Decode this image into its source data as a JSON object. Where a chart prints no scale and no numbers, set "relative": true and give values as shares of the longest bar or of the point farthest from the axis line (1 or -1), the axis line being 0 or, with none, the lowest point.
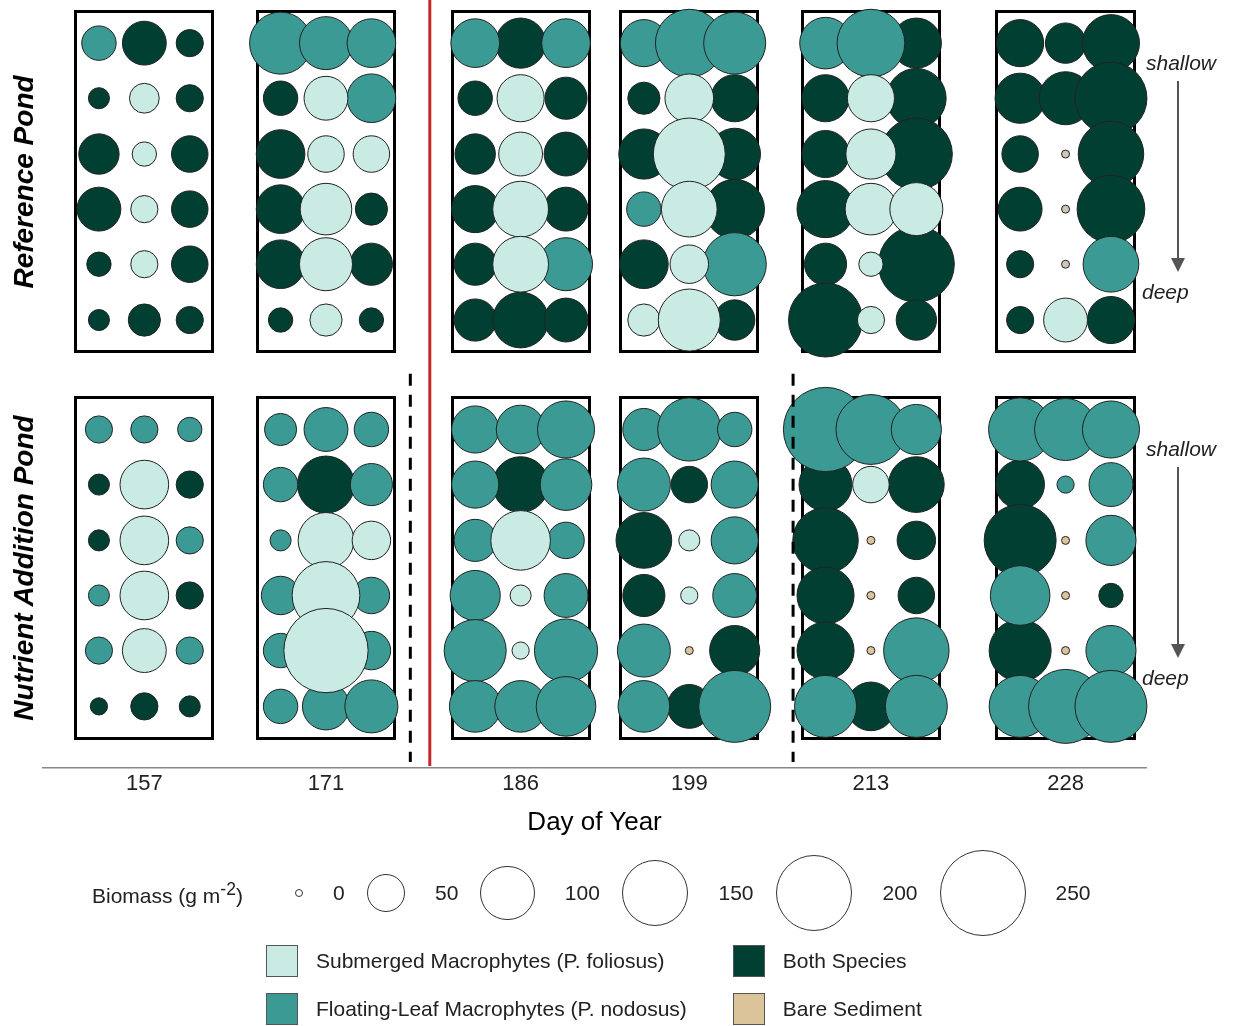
{
  "chart_data": {
    "type": "bubble",
    "xlabel": "Day of Year",
    "relative": true,
    "xlim": [
      149.2,
      234.2
    ],
    "xticks": [
      157,
      171,
      186,
      199,
      213,
      228
    ],
    "tick_labels": "x",
    "grid": false,
    "legend": "bottom",
    "legend_title": "Biomass (g m$^{-2}$)",
    "size_legend": [
      50,
      100,
      150,
      200,
      250
    ],
    "annotations": [
      "Reference Pond",
      "shallow",
      "deep",
      "Nutrient Addition Pond",
      "shallow",
      "deep",
      "0"
    ],
    "ref_lines": [
      {
        "axis": "x",
        "value": 179,
        "color": "#c62828",
        "line_style": "solid"
      },
      {
        "axis": "x",
        "value": 177.5,
        "color": "#000000",
        "line_style": "dashed"
      },
      {
        "axis": "x",
        "value": 207,
        "color": "#000000",
        "line_style": "dashed"
      }
    ],
    "series": [
      {
        "color": "#c9ebe4",
        "x": [
          157,
          157,
          157,
          157,
          171,
          171,
          174.5,
          171,
          171,
          171,
          186,
          186,
          186,
          186,
          199,
          199,
          199,
          199,
          195.5,
          199,
          213,
          213,
          213,
          216.5,
          213,
          213,
          228
        ],
        "values": [
          0.924,
          0.847,
          0.771,
          0.695,
          0.924,
          0.847,
          0.847,
          0.771,
          0.695,
          0.618,
          0.924,
          0.847,
          0.771,
          0.695,
          0.924,
          0.847,
          0.771,
          0.695,
          0.618,
          0.618,
          0.924,
          0.847,
          0.771,
          0.771,
          0.695,
          0.618,
          0.618
        ],
        "sizes": [
          30,
          20,
          25,
          25,
          65,
          45,
          45,
          90,
          95,
          35,
          75,
          65,
          105,
          105,
          80,
          175,
          105,
          50,
          35,
          130,
          75,
          85,
          90,
          95,
          20,
          25,
          65
        ]
      },
      {
        "color": "#3b9a93",
        "x": [
          153.5,
          167.5,
          171,
          174.5,
          174.5,
          182.5,
          189.5,
          189.5,
          195.5,
          199,
          202.5,
          195.5,
          202.5,
          209.5,
          213,
          231.5
        ],
        "values": [
          1,
          1,
          1,
          1,
          0.924,
          1,
          1,
          0.695,
          1,
          1,
          1,
          0.771,
          0.695,
          1,
          1,
          0.695
        ],
        "sizes": [
          40,
          130,
          95,
          80,
          80,
          80,
          80,
          95,
          75,
          155,
          130,
          40,
          135,
          90,
          155,
          105
        ]
      },
      {
        "color": "#023f33",
        "x": [
          157,
          160.5,
          153.5,
          160.5,
          153.5,
          160.5,
          153.5,
          160.5,
          153.5,
          160.5,
          153.5,
          157,
          160.5,
          167.5,
          167.5,
          167.5,
          174.5,
          167.5,
          174.5,
          167.5,
          174.5,
          186,
          182.5,
          189.5,
          182.5,
          189.5,
          182.5,
          189.5,
          182.5,
          182.5,
          186,
          189.5,
          195.5,
          202.5,
          195.5,
          202.5,
          202.5,
          195.5,
          202.5,
          216.5,
          209.5,
          216.5,
          209.5,
          216.5,
          209.5,
          209.5,
          216.5,
          209.5,
          216.5,
          224.5,
          228,
          231.5,
          224.5,
          228,
          231.5,
          224.5,
          231.5,
          224.5,
          231.5,
          224.5,
          224.5,
          231.5
        ],
        "values": [
          1,
          1,
          0.924,
          0.924,
          0.847,
          0.847,
          0.771,
          0.771,
          0.695,
          0.695,
          0.618,
          0.618,
          0.618,
          0.924,
          0.847,
          0.771,
          0.771,
          0.695,
          0.695,
          0.618,
          0.618,
          1,
          0.924,
          0.924,
          0.847,
          0.847,
          0.771,
          0.771,
          0.695,
          0.618,
          0.618,
          0.618,
          0.924,
          0.924,
          0.847,
          0.847,
          0.771,
          0.695,
          0.618,
          1,
          0.924,
          0.924,
          0.847,
          0.847,
          0.771,
          0.695,
          0.695,
          0.618,
          0.618,
          1,
          1,
          1,
          0.924,
          0.924,
          0.924,
          0.847,
          0.847,
          0.771,
          0.771,
          0.695,
          0.618,
          0.618
        ],
        "sizes": [
          65,
          25,
          15,
          25,
          55,
          45,
          65,
          45,
          20,
          45,
          15,
          35,
          25,
          40,
          80,
          80,
          35,
          80,
          60,
          20,
          20,
          85,
          40,
          60,
          55,
          65,
          75,
          65,
          60,
          60,
          105,
          65,
          35,
          75,
          85,
          90,
          120,
          80,
          55,
          85,
          75,
          120,
          75,
          175,
          110,
          60,
          195,
          185,
          55,
          75,
          55,
          110,
          85,
          95,
          175,
          45,
          145,
          65,
          155,
          25,
          25,
          75
        ]
      },
      {
        "type": "scatter",
        "color": "#cfc6b8",
        "x": [
          228,
          228,
          228
        ],
        "values": [
          0.847,
          0.771,
          0.695
        ]
      },
      {
        "name": "Submerged Macrophytes (P. foliosus)",
        "color": "#c9ebe4",
        "x": [
          157,
          157,
          157,
          157,
          171,
          174.5,
          171,
          171,
          186,
          186,
          186,
          199,
          199,
          213
        ],
        "values": [
          0.391,
          0.314,
          0.238,
          0.162,
          0.314,
          0.314,
          0.238,
          0.162,
          0.314,
          0.238,
          0.162,
          0.314,
          0.238,
          0.391
        ],
        "sizes": [
          80,
          80,
          80,
          65,
          105,
          50,
          155,
          240,
          120,
          15,
          10,
          15,
          10,
          45
        ]
      },
      {
        "name": "Floating-Leaf Macrophytes (P. nodosus)",
        "color": "#3b9a93",
        "x": [
          153.5,
          157,
          160.5,
          160.5,
          153.5,
          153.5,
          160.5,
          167.5,
          171,
          174.5,
          167.5,
          174.5,
          167.5,
          167.5,
          174.5,
          167.5,
          174.5,
          167.5,
          171,
          174.5,
          182.5,
          186,
          189.5,
          182.5,
          189.5,
          182.5,
          189.5,
          182.5,
          189.5,
          182.5,
          189.5,
          182.5,
          186,
          189.5,
          195.5,
          199,
          202.5,
          195.5,
          202.5,
          202.5,
          202.5,
          195.5,
          195.5,
          202.5,
          209.5,
          213,
          216.5,
          216.5,
          209.5,
          216.5,
          224.5,
          228,
          231.5,
          228,
          231.5,
          231.5,
          224.5,
          231.5,
          224.5,
          228,
          231.5
        ],
        "values": [
          0.467,
          0.467,
          0.467,
          0.314,
          0.238,
          0.162,
          0.162,
          0.467,
          0.467,
          0.467,
          0.391,
          0.391,
          0.314,
          0.238,
          0.238,
          0.162,
          0.162,
          0.085,
          0.085,
          0.085,
          0.467,
          0.467,
          0.467,
          0.391,
          0.391,
          0.314,
          0.314,
          0.238,
          0.238,
          0.162,
          0.162,
          0.085,
          0.085,
          0.085,
          0.467,
          0.467,
          0.467,
          0.391,
          0.391,
          0.314,
          0.238,
          0.162,
          0.085,
          0.085,
          0.467,
          0.467,
          0.467,
          0.162,
          0.085,
          0.085,
          0.467,
          0.467,
          0.467,
          0.391,
          0.391,
          0.314,
          0.238,
          0.162,
          0.085,
          0.085,
          0.085
        ],
        "sizes": [
          25,
          25,
          20,
          25,
          15,
          25,
          25,
          35,
          65,
          40,
          40,
          60,
          15,
          50,
          45,
          40,
          50,
          40,
          75,
          95,
          75,
          80,
          110,
          75,
          90,
          60,
          45,
          85,
          65,
          130,
          135,
          90,
          90,
          120,
          60,
          135,
          40,
          95,
          75,
          75,
          65,
          95,
          90,
          175,
          240,
          165,
          85,
          145,
          130,
          130,
          135,
          130,
          110,
          10,
          65,
          85,
          120,
          85,
          130,
          185,
          175
        ]
      },
      {
        "name": "Both Species",
        "color": "#023f33",
        "x": [
          153.5,
          160.5,
          153.5,
          160.5,
          153.5,
          157,
          160.5,
          171,
          186,
          199,
          195.5,
          195.5,
          202.5,
          199,
          209.5,
          216.5,
          209.5,
          216.5,
          209.5,
          216.5,
          209.5,
          213,
          224.5,
          224.5,
          231.5,
          224.5
        ],
        "values": [
          0.391,
          0.391,
          0.314,
          0.238,
          0.085,
          0.085,
          0.085,
          0.391,
          0.391,
          0.391,
          0.314,
          0.238,
          0.162,
          0.085,
          0.391,
          0.391,
          0.314,
          0.314,
          0.238,
          0.238,
          0.162,
          0.085,
          0.391,
          0.314,
          0.238,
          0.162
        ],
        "sizes": [
          15,
          25,
          15,
          25,
          10,
          25,
          15,
          110,
          105,
          45,
          105,
          60,
          85,
          65,
          95,
          105,
          145,
          50,
          110,
          45,
          110,
          80,
          80,
          175,
          20,
          130
        ]
      },
      {
        "name": "Bare Sediment",
        "type": "scatter",
        "color": "#dcc49a",
        "x": [
          199,
          213,
          213,
          213,
          228,
          228,
          228
        ],
        "values": [
          0.162,
          0.314,
          0.238,
          0.162,
          0.314,
          0.238,
          0.162
        ]
      }
    ]
  }
}
